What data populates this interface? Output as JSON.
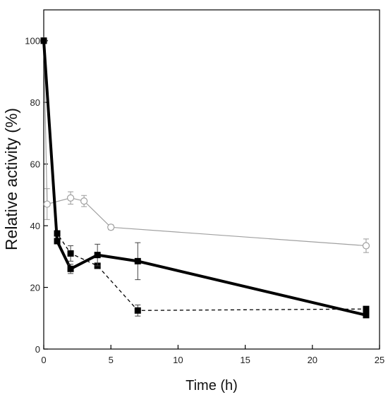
{
  "chart_data": {
    "type": "line",
    "title": "",
    "xlabel": "Time (h)",
    "ylabel": "Relative activity (%)",
    "xlim": [
      0,
      25
    ],
    "ylim": [
      0,
      110
    ],
    "xticks": [
      "0",
      "5",
      "10",
      "15",
      "20",
      "25"
    ],
    "yticks": [
      "0",
      "20",
      "40",
      "60",
      "80",
      "100"
    ],
    "grid": false,
    "legend": "none",
    "series": [
      {
        "style": "thick-solid-black-square",
        "color": "#000000",
        "x": [
          0,
          1,
          2,
          4,
          7,
          24
        ],
        "y": [
          100,
          35,
          26,
          30.5,
          28.5,
          11
        ],
        "err": [
          0,
          0,
          1.5,
          3.5,
          6,
          0.5
        ]
      },
      {
        "style": "dashed-black-square",
        "color": "#000000",
        "x": [
          0,
          1,
          2,
          4,
          7,
          24
        ],
        "y": [
          100,
          37.5,
          31,
          27,
          12.5,
          13
        ],
        "err": [
          0,
          0,
          2.5,
          0,
          1.8,
          0
        ]
      },
      {
        "style": "thin-gray-open-circle",
        "color": "#a0a0a0",
        "x": [
          0,
          0.25,
          2,
          3,
          5,
          24
        ],
        "y": [
          100,
          47,
          49,
          48,
          39.5,
          33.5
        ],
        "err": [
          0,
          5,
          2,
          1.8,
          0.8,
          2.2
        ]
      }
    ]
  }
}
